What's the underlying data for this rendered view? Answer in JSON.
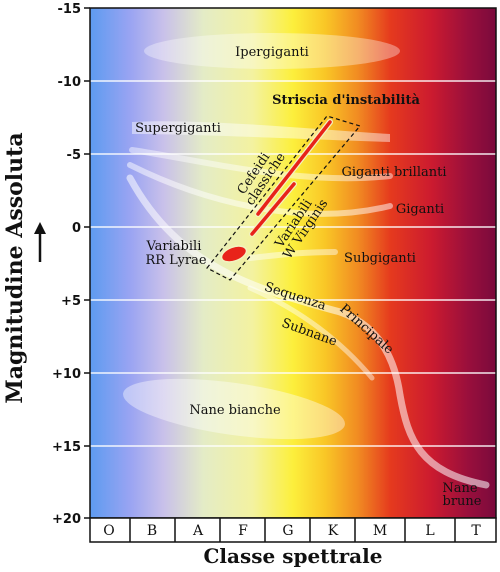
{
  "y_axis": {
    "title": "Magnitudine Assoluta",
    "ticks": [
      "-15",
      "-10",
      "-5",
      "0",
      "+5",
      "+10",
      "+15",
      "+20"
    ]
  },
  "x_axis": {
    "title": "Classe spettrale",
    "classes": [
      "O",
      "B",
      "A",
      "F",
      "G",
      "K",
      "M",
      "L",
      "T"
    ]
  },
  "regions": {
    "ipergiganti": "Ipergiganti",
    "supergiganti": "Supergiganti",
    "striscia": "Striscia d'instabilità",
    "cefeidi_1": "Cefeidi",
    "cefeidi_2": "classiche",
    "wvirginis_1": "Variabili",
    "wvirginis_2": "W Virginis",
    "giganti_brillanti": "Giganti brillanti",
    "giganti": "Giganti",
    "rrlyrae_1": "Variabili",
    "rrlyrae_2": "RR Lyrae",
    "subgiganti": "Subgiganti",
    "sequenza": "Sequenza",
    "principale": "Principale",
    "subnane": "Subnane",
    "nane_bianche": "Nane bianche",
    "nane_brune_1": "Nane",
    "nane_brune_2": "brune"
  },
  "colors": {
    "instability_strip": "#e8231a",
    "main_sequence": "#ffffff"
  }
}
